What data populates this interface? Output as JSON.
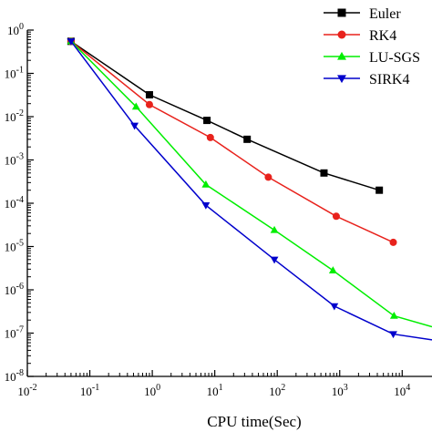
{
  "chart_data": {
    "type": "line",
    "title": "",
    "xlabel": "CPU time(Sec)",
    "ylabel": "",
    "x_scale": "log",
    "y_scale": "log",
    "xlim": [
      0.01,
      30000
    ],
    "ylim": [
      1e-08,
      1
    ],
    "x_ticks": [
      {
        "value": 0.01,
        "base": "10",
        "exp": "-2"
      },
      {
        "value": 0.1,
        "base": "10",
        "exp": "-1"
      },
      {
        "value": 1,
        "base": "10",
        "exp": "0"
      },
      {
        "value": 10,
        "base": "10",
        "exp": "1"
      },
      {
        "value": 100,
        "base": "10",
        "exp": "2"
      },
      {
        "value": 1000,
        "base": "10",
        "exp": "3"
      },
      {
        "value": 10000,
        "base": "10",
        "exp": "4"
      }
    ],
    "y_ticks": [
      {
        "value": 1,
        "base": "10",
        "exp": "0"
      },
      {
        "value": 0.1,
        "base": "10",
        "exp": "-1"
      },
      {
        "value": 0.01,
        "base": "10",
        "exp": "-2"
      },
      {
        "value": 0.001,
        "base": "10",
        "exp": "-3"
      },
      {
        "value": 0.0001,
        "base": "10",
        "exp": "-4"
      },
      {
        "value": 1e-05,
        "base": "10",
        "exp": "-5"
      },
      {
        "value": 1e-06,
        "base": "10",
        "exp": "-6"
      },
      {
        "value": 1e-07,
        "base": "10",
        "exp": "-7"
      },
      {
        "value": 1e-08,
        "base": "10",
        "exp": "-8"
      }
    ],
    "grid": false,
    "legend_position": "top-right",
    "series": [
      {
        "name": "Euler",
        "color": "#000000",
        "marker": "square",
        "x": [
          0.05,
          0.9,
          7.5,
          33,
          560,
          4300
        ],
        "y": [
          0.55,
          0.032,
          0.0082,
          0.003,
          0.0005,
          0.0002
        ]
      },
      {
        "name": "RK4",
        "color": "#e8221c",
        "marker": "circle",
        "x": [
          0.05,
          0.9,
          8.5,
          72,
          880,
          7200
        ],
        "y": [
          0.55,
          0.019,
          0.0033,
          0.0004,
          5e-05,
          1.25e-05
        ]
      },
      {
        "name": "LU-SGS",
        "color": "#00ee00",
        "marker": "triangle-up",
        "x": [
          0.05,
          0.55,
          7.2,
          90,
          780,
          7400,
          30000
        ],
        "y": [
          0.55,
          0.017,
          0.00027,
          2.4e-05,
          2.8e-06,
          2.5e-07,
          1.4e-07
        ]
      },
      {
        "name": "SIRK4",
        "color": "#0000cc",
        "marker": "triangle-down",
        "x": [
          0.05,
          0.52,
          7.2,
          90,
          820,
          7200,
          30000
        ],
        "y": [
          0.55,
          0.0062,
          9e-05,
          5e-06,
          4.2e-07,
          9.5e-08,
          7e-08
        ]
      }
    ]
  }
}
